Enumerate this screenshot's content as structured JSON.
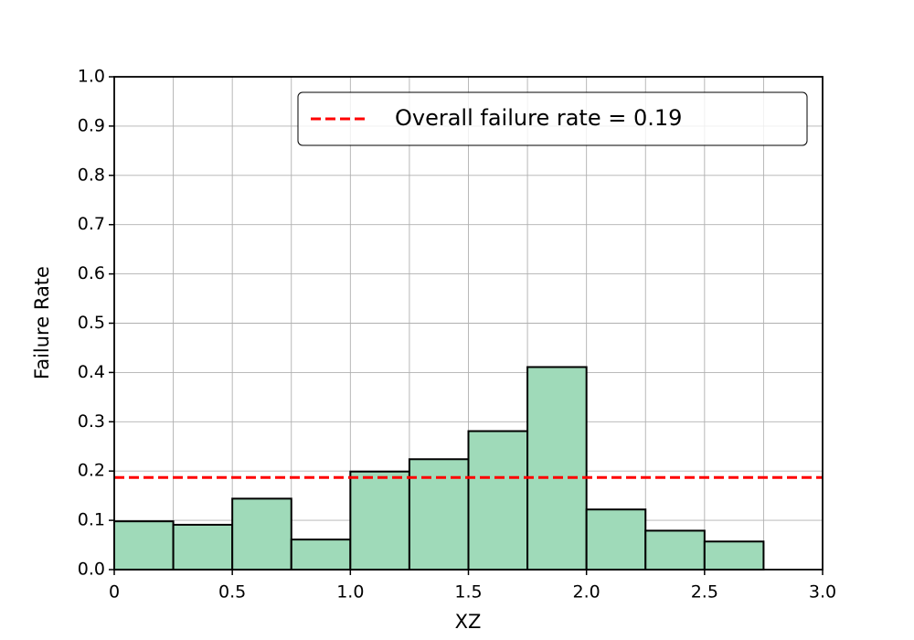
{
  "chart_data": {
    "type": "histogram",
    "xlabel": "XZ",
    "ylabel": "Failure Rate",
    "bins": [
      0,
      0.25,
      0.5,
      0.75,
      1,
      1.25,
      1.5,
      1.75,
      2,
      2.25,
      2.5,
      2.75,
      3
    ],
    "values": [
      0.098,
      0.091,
      0.144,
      0.061,
      0.199,
      0.224,
      0.281,
      0.411,
      0.122,
      0.079,
      0.057,
      0
    ],
    "color": "#9fdab9",
    "edgecolor": "#000000",
    "hline": {
      "value": 0.187,
      "label": "Overall failure rate = 0.19",
      "color": "#ff0000"
    },
    "xlim": [
      0,
      3
    ],
    "ylim": [
      0,
      1
    ],
    "xticks": [
      0,
      0.5,
      {
        "value": 1,
        "label": "1.0"
      },
      {
        "value": 1.5,
        "label": "1.5"
      },
      {
        "value": 2,
        "label": "2.0"
      },
      {
        "value": 2.5,
        "label": "2.5"
      },
      {
        "value": 3,
        "label": "3.0"
      }
    ],
    "yticks": [
      {
        "value": 0,
        "label": "0.0"
      },
      0.1,
      0.2,
      0.3,
      0.4,
      0.5,
      0.6,
      0.7,
      0.8,
      0.9,
      {
        "value": 1,
        "label": "1.0"
      }
    ],
    "grid": true,
    "legend": "upper right"
  }
}
